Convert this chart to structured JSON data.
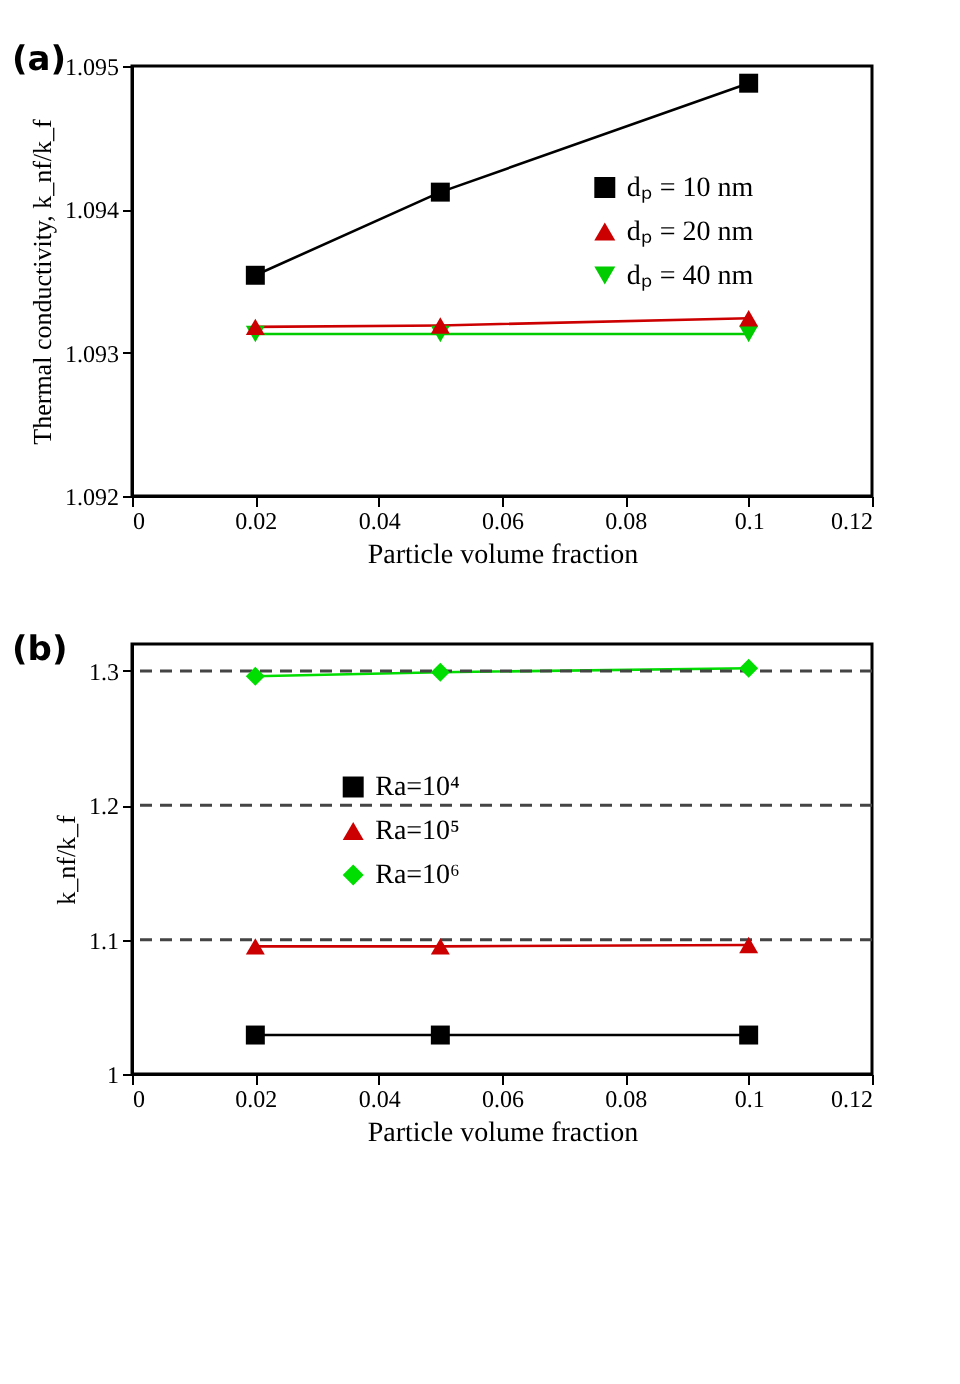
{
  "chart_data": [
    {
      "type": "line",
      "title": "(a)",
      "xlabel": "Particle volume fraction",
      "ylabel": "Thermal conductivity, k_nf/k_f",
      "x": [
        0.02,
        0.05,
        0.1
      ],
      "xlim": [
        0,
        0.12
      ],
      "xticks": [
        0,
        0.02,
        0.04,
        0.06,
        0.08,
        0.1,
        0.12
      ],
      "ylim": [
        1.092,
        1.095
      ],
      "yticks": [
        1.092,
        1.093,
        1.094,
        1.095
      ],
      "grid": false,
      "legend": "right",
      "series": [
        {
          "name": "dₚ = 10 nm",
          "color": "#000000",
          "marker": "square",
          "values": [
            1.09354,
            1.09412,
            1.09488
          ]
        },
        {
          "name": "dₚ = 20 nm",
          "color": "#cc0000",
          "marker": "triangle",
          "values": [
            1.09318,
            1.09319,
            1.09324
          ]
        },
        {
          "name": "dₚ = 40 nm",
          "color": "#00cc00",
          "marker": "triangle-down",
          "values": [
            1.09313,
            1.09313,
            1.09313
          ]
        }
      ]
    },
    {
      "type": "line",
      "title": "(b)",
      "xlabel": "Particle volume fraction",
      "ylabel": "k_nf/k_f",
      "x": [
        0.02,
        0.05,
        0.1
      ],
      "xlim": [
        0,
        0.12
      ],
      "xticks": [
        0,
        0.02,
        0.04,
        0.06,
        0.08,
        0.1,
        0.12
      ],
      "ylim": [
        1,
        1.32
      ],
      "yticks": [
        1,
        1.1,
        1.2,
        1.3
      ],
      "grid": false,
      "legend": "center",
      "ref_lines": [
        {
          "axis": "y",
          "value": 1.1,
          "color": "#444444",
          "line_style": "dashed"
        },
        {
          "axis": "y",
          "value": 1.2,
          "color": "#444444",
          "line_style": "dashed"
        },
        {
          "axis": "y",
          "value": 1.3,
          "color": "#444444",
          "line_style": "dashed"
        }
      ],
      "series": [
        {
          "name": "Ra=10⁴",
          "color": "#000000",
          "marker": "square",
          "values": [
            1.029,
            1.029,
            1.029
          ]
        },
        {
          "name": "Ra=10⁵",
          "color": "#cc0000",
          "marker": "triangle",
          "values": [
            1.095,
            1.095,
            1.096
          ]
        },
        {
          "name": "Ra=10⁶",
          "color": "#00dd00",
          "marker": "diamond",
          "values": [
            1.296,
            1.299,
            1.302
          ]
        }
      ]
    }
  ]
}
